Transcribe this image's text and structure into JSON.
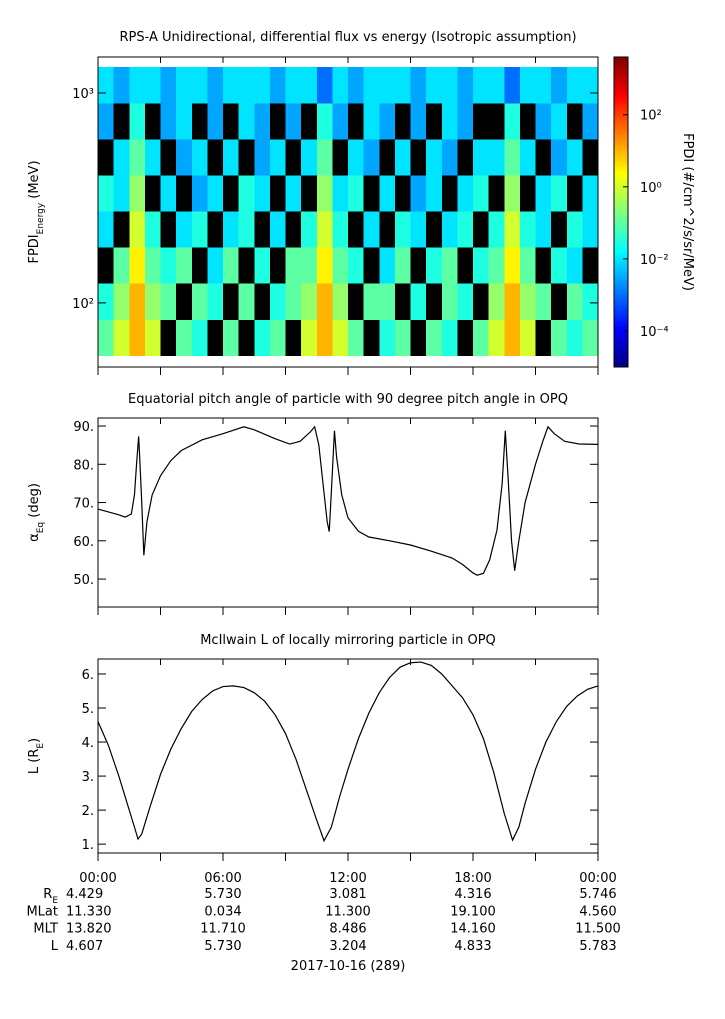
{
  "chart_data": [
    {
      "type": "spectrogram",
      "title": "RPS-A Unidirectional, differential flux vs energy (Isotropic assumption)",
      "ylabel": [
        "FPDI",
        "Energy",
        " (MeV)"
      ],
      "zlabel": "FPDI (#/cm^2/s/sr/MeV)",
      "xlim": [
        0,
        24
      ],
      "xticks": [
        0,
        3,
        6,
        9,
        12,
        15,
        18,
        21,
        24
      ],
      "ylim": [
        49.5,
        1484
      ],
      "ylog": true,
      "yticks": [
        {
          "value": 100,
          "label": "10²"
        },
        {
          "value": 1000,
          "label": "10³"
        }
      ],
      "zlim": [
        1e-05,
        4000
      ],
      "zlog": true,
      "colormap": "jet",
      "null_color": "#000000",
      "zticks": [
        {
          "value": 0.0001,
          "label": "10⁻⁴"
        },
        {
          "value": 0.01,
          "label": "10⁻²"
        },
        {
          "value": 1,
          "label": "10⁰"
        },
        {
          "value": 100,
          "label": "10²"
        }
      ],
      "xbins": [
        0,
        0.75,
        1.5,
        2.25,
        3,
        3.75,
        4.5,
        5.25,
        6,
        6.75,
        7.5,
        8.25,
        9,
        9.75,
        10.5,
        11.25,
        12,
        12.75,
        13.5,
        14.25,
        15,
        15.75,
        16.5,
        17.25,
        18,
        18.75,
        19.5,
        20.25,
        21,
        21.75,
        22.5,
        23.25,
        24
      ],
      "ybins": [
        56,
        83,
        124,
        184,
        273,
        406,
        603,
        896,
        1330
      ],
      "z": [
        [
          0.1,
          1,
          10,
          1,
          null,
          0.1,
          0.03,
          null,
          0.1,
          null,
          0.03,
          0.1,
          null,
          1,
          10,
          1,
          0.1,
          null,
          0.03,
          0.1,
          null,
          0.1,
          0.03,
          null,
          0.1,
          1,
          10,
          1,
          null,
          0.1,
          0.03,
          0.1
        ],
        [
          0.03,
          0.3,
          10,
          0.3,
          0.1,
          null,
          0.1,
          0.03,
          null,
          0.1,
          null,
          0.03,
          0.1,
          0.3,
          10,
          0.3,
          null,
          0.1,
          0.1,
          null,
          0.03,
          null,
          0.1,
          0.03,
          null,
          0.3,
          10,
          0.3,
          0.1,
          null,
          0.1,
          0.03
        ],
        [
          null,
          0.1,
          3,
          0.1,
          0.03,
          0.1,
          null,
          0.01,
          0.1,
          null,
          0.03,
          null,
          0.1,
          0.1,
          3,
          0.1,
          0.03,
          null,
          0.01,
          0.1,
          null,
          0.03,
          0.1,
          null,
          0.03,
          0.1,
          3,
          0.1,
          null,
          0.03,
          0.01,
          null
        ],
        [
          0.01,
          null,
          1,
          0.03,
          null,
          0.01,
          0.03,
          null,
          0.01,
          0.03,
          null,
          0.01,
          null,
          0.03,
          1,
          0.03,
          null,
          0.01,
          null,
          0.03,
          0.01,
          null,
          0.01,
          0.03,
          null,
          0.03,
          1,
          0.03,
          0.01,
          null,
          0.03,
          0.01
        ],
        [
          0.03,
          0.01,
          0.3,
          null,
          0.01,
          null,
          0.003,
          0.01,
          null,
          0.03,
          0.01,
          null,
          0.01,
          null,
          0.3,
          0.01,
          0.03,
          null,
          0.01,
          null,
          0.003,
          0.01,
          null,
          0.01,
          0.03,
          null,
          0.3,
          null,
          0.01,
          0.03,
          null,
          0.01
        ],
        [
          null,
          0.01,
          0.1,
          0.01,
          null,
          0.003,
          0.01,
          null,
          0.01,
          null,
          0.003,
          0.01,
          null,
          0.01,
          0.1,
          null,
          0.01,
          0.003,
          null,
          0.01,
          null,
          0.01,
          0.003,
          null,
          0.01,
          0.01,
          0.1,
          0.01,
          null,
          0.003,
          0.01,
          null
        ],
        [
          0.003,
          null,
          0.03,
          null,
          0.003,
          0.01,
          null,
          0.003,
          null,
          0.01,
          0.003,
          null,
          0.003,
          null,
          0.03,
          0.003,
          null,
          0.01,
          0.003,
          null,
          0.003,
          null,
          0.01,
          0.003,
          null,
          null,
          0.03,
          null,
          0.003,
          0.01,
          null,
          0.003
        ],
        [
          0.01,
          0.003,
          0.01,
          0.01,
          0.003,
          0.01,
          0.01,
          0.003,
          0.01,
          0.01,
          0.01,
          0.003,
          0.01,
          0.01,
          0.001,
          0.01,
          0.003,
          0.01,
          0.01,
          0.01,
          0.003,
          0.01,
          0.01,
          0.003,
          0.01,
          0.01,
          0.001,
          0.01,
          0.01,
          0.003,
          0.01,
          0.01
        ]
      ]
    },
    {
      "type": "line",
      "title": "Equatorial pitch angle of particle with 90 degree pitch angle in OPQ",
      "ylabel": [
        "α",
        "Eq",
        " (deg)"
      ],
      "xlim": [
        0,
        24
      ],
      "xticks": [
        0,
        3,
        6,
        9,
        12,
        15,
        18,
        21,
        24
      ],
      "ylim": [
        42.7,
        92.1
      ],
      "yticks": [
        {
          "value": 50,
          "label": "50."
        },
        {
          "value": 60,
          "label": "60."
        },
        {
          "value": 70,
          "label": "70."
        },
        {
          "value": 80,
          "label": "80."
        },
        {
          "value": 90,
          "label": "90."
        }
      ],
      "color": "#000000",
      "x": [
        0,
        1.0,
        1.3,
        1.6,
        1.75,
        1.85,
        1.95,
        2.0,
        2.1,
        2.2,
        2.35,
        2.6,
        3.0,
        3.5,
        4.0,
        5.0,
        6.0,
        7.0,
        7.5,
        8.5,
        9.2,
        9.7,
        10.2,
        10.4,
        10.6,
        10.8,
        11.0,
        11.1,
        11.25,
        11.35,
        11.45,
        11.7,
        12.0,
        12.5,
        13.0,
        14.0,
        15.0,
        16.0,
        17.0,
        17.5,
        18.0,
        18.2,
        18.5,
        18.8,
        19.15,
        19.4,
        19.55,
        19.7,
        19.85,
        20.0,
        20.2,
        20.5,
        21.0,
        21.35,
        21.6,
        21.9,
        22.4,
        23.1,
        24
      ],
      "values": [
        68.3,
        66.8,
        66.2,
        67,
        72,
        80,
        87.3,
        82,
        70,
        56.2,
        65,
        72,
        77,
        81,
        83.6,
        86.4,
        88,
        89.8,
        89,
        86.7,
        85.3,
        86,
        88.5,
        89.8,
        85,
        75,
        65,
        62.4,
        78,
        88.8,
        82,
        72,
        66,
        62.5,
        61,
        60,
        58.9,
        57.3,
        55.5,
        53.8,
        51.6,
        51.0,
        51.5,
        55,
        62.8,
        75,
        88.8,
        75,
        60,
        52.2,
        60,
        70,
        80,
        86,
        89.8,
        88,
        86,
        85.3,
        85.2
      ]
    },
    {
      "type": "line",
      "title": "McIlwain L of locally mirroring particle in OPQ",
      "ylabel": [
        "L (R",
        "E",
        ")"
      ],
      "xlim": [
        0,
        24
      ],
      "xticks": [
        0,
        3,
        6,
        9,
        12,
        15,
        18,
        21,
        24
      ],
      "ylim": [
        0.74,
        6.44
      ],
      "yticks": [
        {
          "value": 1,
          "label": "1."
        },
        {
          "value": 2,
          "label": "2."
        },
        {
          "value": 3,
          "label": "3."
        },
        {
          "value": 4,
          "label": "4."
        },
        {
          "value": 5,
          "label": "5."
        },
        {
          "value": 6,
          "label": "6."
        }
      ],
      "color": "#000000",
      "x": [
        0,
        0.5,
        1.0,
        1.5,
        1.75,
        1.92,
        2.1,
        2.5,
        3,
        3.5,
        4,
        4.5,
        5,
        5.5,
        6,
        6.5,
        7,
        7.5,
        8,
        8.5,
        9,
        9.5,
        10,
        10.5,
        10.85,
        11.2,
        11.6,
        12,
        12.5,
        13,
        13.5,
        14,
        14.5,
        15,
        15.5,
        16,
        16.5,
        17,
        17.5,
        18,
        18.5,
        19,
        19.5,
        19.9,
        20.2,
        20.5,
        21,
        21.5,
        22,
        22.5,
        23,
        23.5,
        24
      ],
      "values": [
        4.6,
        3.9,
        3.0,
        2.0,
        1.5,
        1.15,
        1.3,
        2.1,
        3.05,
        3.8,
        4.4,
        4.9,
        5.25,
        5.5,
        5.63,
        5.65,
        5.6,
        5.45,
        5.2,
        4.8,
        4.25,
        3.5,
        2.6,
        1.7,
        1.1,
        1.5,
        2.4,
        3.2,
        4.1,
        4.85,
        5.45,
        5.9,
        6.2,
        6.33,
        6.35,
        6.25,
        6.0,
        5.65,
        5.3,
        4.8,
        4.1,
        3.1,
        1.9,
        1.12,
        1.5,
        2.2,
        3.2,
        4.0,
        4.6,
        5.05,
        5.35,
        5.55,
        5.65
      ]
    }
  ],
  "ephemeris": {
    "times": [
      "00:00",
      "06:00",
      "12:00",
      "18:00",
      "00:00"
    ],
    "rows": [
      {
        "label": [
          "R",
          "E"
        ],
        "values": [
          "4.429",
          "5.730",
          "3.081",
          "4.316",
          "5.746"
        ]
      },
      {
        "label": [
          "MLat"
        ],
        "values": [
          "11.330",
          "0.034",
          "11.300",
          "19.100",
          "4.560"
        ]
      },
      {
        "label": [
          "MLT"
        ],
        "values": [
          "13.820",
          "11.710",
          "8.486",
          "14.160",
          "11.500"
        ]
      },
      {
        "label": [
          "L"
        ],
        "values": [
          "4.607",
          "5.730",
          "3.204",
          "4.833",
          "5.783"
        ]
      }
    ],
    "date": "2017-10-16 (289)"
  }
}
